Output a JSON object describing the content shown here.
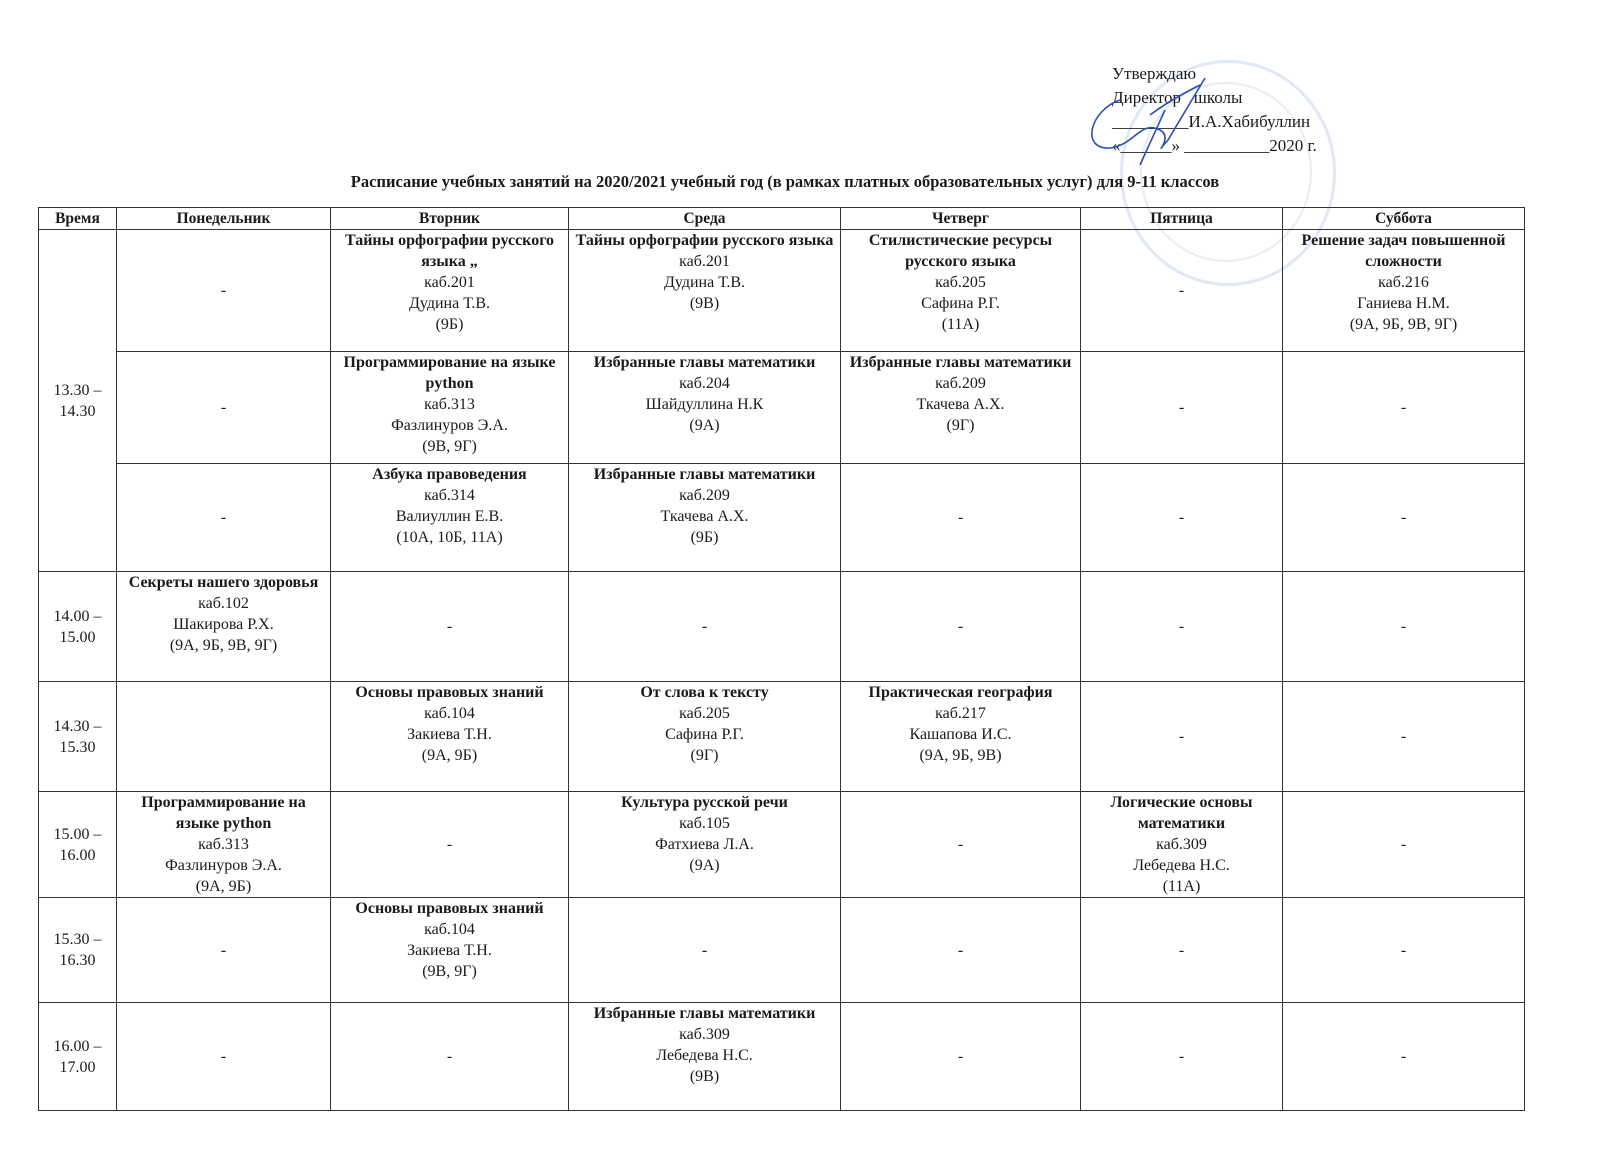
{
  "approval": {
    "line1": "Утверждаю",
    "line2": "Директор   школы",
    "line3": "_________И.А.Хабибуллин",
    "line4": "«______» __________2020 г."
  },
  "title": "Расписание учебных занятий на 2020/2021  учебный год (в рамках  платных образовательных услуг) для  9-11 классов",
  "headers": [
    "Время",
    "Понедельник",
    "Вторник",
    "Среда",
    "Четверг",
    "Пятница",
    "Суббота"
  ],
  "rows": [
    {
      "time": "13.30 – 14.30",
      "span": 3,
      "cells": [
        "-",
        {
          "title": "Тайны орфографии русского языка „",
          "room": "каб.201",
          "teacher": "Дудина Т.В.",
          "classes": "(9Б)"
        },
        {
          "title": "Тайны орфографии русского языка",
          "room": "каб.201",
          "teacher": "Дудина Т.В.",
          "classes": "(9В)"
        },
        {
          "title": "Стилистические ресурсы русского языка",
          "room": "каб.205",
          "teacher": "Сафина Р.Г.",
          "classes": "(11А)"
        },
        "-",
        {
          "title": "Решение задач повышенной сложности",
          "room": "каб.216",
          "teacher": "Ганиева Н.М.",
          "classes": "(9А, 9Б, 9В, 9Г)"
        }
      ]
    },
    {
      "time": null,
      "cells": [
        "-",
        {
          "title": "Программирование на языке python",
          "room": "каб.313",
          "teacher": "Фазлинуров Э.А.",
          "classes": "(9В, 9Г)"
        },
        {
          "title": "Избранные главы математики",
          "room": "каб.204",
          "teacher": "Шайдуллина Н.К",
          "classes": "(9А)"
        },
        {
          "title": "Избранные главы математики",
          "room": "каб.209",
          "teacher": "Ткачева А.Х.",
          "classes": "(9Г)"
        },
        "-",
        "-"
      ]
    },
    {
      "time": null,
      "cells": [
        "-",
        {
          "title": "Азбука правоведения",
          "room": "каб.314",
          "teacher": "Валиуллин Е.В.",
          "classes": "(10А, 10Б, 11А)"
        },
        {
          "title": "Избранные главы математики",
          "room": "каб.209",
          "teacher": "Ткачева А.Х.",
          "classes": "(9Б)"
        },
        "-",
        "-",
        "-"
      ]
    },
    {
      "time": "14.00 – 15.00",
      "cells": [
        {
          "title": "Секреты нашего здоровья",
          "room": "каб.102",
          "teacher": "Шакирова Р.Х.",
          "classes": "(9А, 9Б, 9В, 9Г)"
        },
        "-",
        "-",
        "-",
        "-",
        "-"
      ]
    },
    {
      "time": "14.30 – 15.30",
      "cells": [
        "",
        {
          "title": "Основы правовых знаний",
          "room": "каб.104",
          "teacher": "Закиева Т.Н.",
          "classes": "(9А, 9Б)"
        },
        {
          "title": "От слова к тексту",
          "room": "каб.205",
          "teacher": "Сафина Р.Г.",
          "classes": "(9Г)"
        },
        {
          "title": "Практическая география",
          "room": "каб.217",
          "teacher": "Кашапова И.С.",
          "classes": "(9А, 9Б, 9В)"
        },
        "-",
        "-"
      ]
    },
    {
      "time": "15.00 – 16.00",
      "cells": [
        {
          "title": "Программирование на языке python",
          "room": "каб.313",
          "teacher": "Фазлинуров Э.А.",
          "classes": "(9А, 9Б)"
        },
        "-",
        {
          "title": "Культура русской речи",
          "room": "каб.105",
          "teacher": "Фатхиева Л.А.",
          "classes": "(9А)"
        },
        "-",
        {
          "title": "Логические основы математики",
          "room": "каб.309",
          "teacher": "Лебедева Н.С.",
          "classes": "(11А)"
        },
        "-"
      ]
    },
    {
      "time": "15.30 – 16.30",
      "cells": [
        "-",
        {
          "title": "Основы правовых знаний",
          "room": "каб.104",
          "teacher": "Закиева Т.Н.",
          "classes": "(9В, 9Г)"
        },
        "-",
        "-",
        "-",
        "-"
      ]
    },
    {
      "time": "16.00 – 17.00",
      "cells": [
        "-",
        "-",
        {
          "title": "Избранные главы математики",
          "room": "каб.309",
          "teacher": "Лебедева Н.С.",
          "classes": "(9В)"
        },
        "-",
        "-",
        "-"
      ]
    }
  ],
  "colors": {
    "ink": "#1a1a1a",
    "signature": "#2a4fb0",
    "stamp": "#8fa6d6"
  }
}
